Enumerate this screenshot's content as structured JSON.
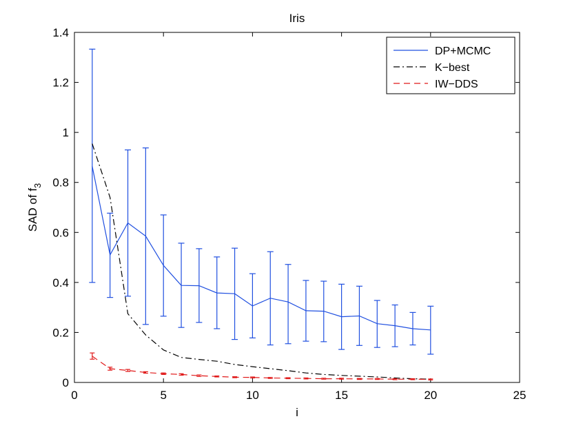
{
  "chart_data": {
    "type": "line",
    "title": "Iris",
    "xlabel": "i",
    "ylabel": "SAD of f",
    "ylabel_subscript": "3",
    "xlim": [
      0,
      25
    ],
    "ylim": [
      0,
      1.4
    ],
    "x_ticks": [
      "0",
      "5",
      "10",
      "15",
      "20",
      "25"
    ],
    "y_ticks": [
      "0",
      "0.2",
      "0.4",
      "0.6",
      "0.8",
      "1",
      "1.2",
      "1.4"
    ],
    "grid": false,
    "legend_position": "top-right",
    "series": [
      {
        "name": "DP+MCMC",
        "color": "#1f4fe0",
        "style": "solid",
        "x": [
          1,
          2,
          3,
          4,
          5,
          6,
          7,
          8,
          9,
          10,
          11,
          12,
          13,
          14,
          15,
          16,
          17,
          18,
          19,
          20
        ],
        "values": [
          0.865,
          0.51,
          0.638,
          0.585,
          0.468,
          0.388,
          0.387,
          0.358,
          0.355,
          0.306,
          0.337,
          0.322,
          0.287,
          0.285,
          0.263,
          0.266,
          0.235,
          0.227,
          0.215,
          0.21
        ],
        "err_low": [
          0.4,
          0.34,
          0.345,
          0.232,
          0.265,
          0.22,
          0.24,
          0.215,
          0.172,
          0.178,
          0.15,
          0.155,
          0.165,
          0.163,
          0.132,
          0.148,
          0.14,
          0.143,
          0.15,
          0.113
        ],
        "err_high": [
          1.333,
          0.677,
          0.93,
          0.938,
          0.67,
          0.557,
          0.535,
          0.502,
          0.537,
          0.435,
          0.523,
          0.472,
          0.408,
          0.405,
          0.393,
          0.385,
          0.328,
          0.31,
          0.28,
          0.305
        ]
      },
      {
        "name": "K−best",
        "color": "#000000",
        "style": "dashdot",
        "x": [
          1,
          2,
          3,
          4,
          5,
          6,
          7,
          8,
          9,
          10,
          11,
          12,
          13,
          14,
          15,
          16,
          17,
          18,
          19,
          20
        ],
        "values": [
          0.955,
          0.74,
          0.275,
          0.19,
          0.13,
          0.1,
          0.092,
          0.085,
          0.072,
          0.063,
          0.055,
          0.047,
          0.038,
          0.032,
          0.028,
          0.025,
          0.022,
          0.018,
          0.015,
          0.013
        ]
      },
      {
        "name": "IW−DDS",
        "color": "#e01818",
        "style": "dashed",
        "x": [
          1,
          2,
          3,
          4,
          5,
          6,
          7,
          8,
          9,
          10,
          11,
          12,
          13,
          14,
          15,
          16,
          17,
          18,
          19,
          20
        ],
        "values": [
          0.105,
          0.055,
          0.048,
          0.04,
          0.035,
          0.032,
          0.027,
          0.024,
          0.021,
          0.02,
          0.018,
          0.017,
          0.016,
          0.015,
          0.015,
          0.014,
          0.014,
          0.013,
          0.013,
          0.012
        ],
        "err_low": [
          0.093,
          0.049,
          0.044,
          0.037,
          0.032,
          0.029,
          0.024,
          0.022,
          0.019,
          0.018,
          0.016,
          0.015,
          0.014,
          0.013,
          0.013,
          0.012,
          0.012,
          0.011,
          0.011,
          0.01
        ],
        "err_high": [
          0.118,
          0.061,
          0.052,
          0.043,
          0.038,
          0.035,
          0.03,
          0.026,
          0.023,
          0.022,
          0.02,
          0.019,
          0.018,
          0.017,
          0.017,
          0.016,
          0.016,
          0.015,
          0.015,
          0.014
        ]
      }
    ]
  }
}
